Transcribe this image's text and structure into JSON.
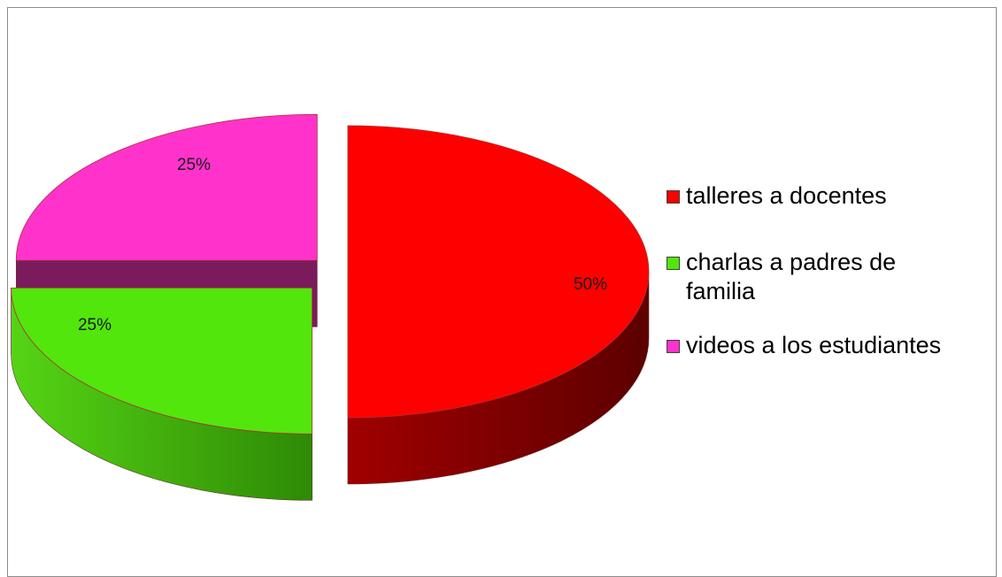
{
  "chart_data": {
    "type": "pie",
    "style": "3d-exploded",
    "slices": [
      {
        "label": "talleres a docentes",
        "value": 50,
        "value_label": "50%",
        "color": "#ff0000",
        "side_color": "#8b0000"
      },
      {
        "label": "charlas a padres de familia",
        "value": 25,
        "value_label": "25%",
        "color": "#52e60c",
        "side_color": "#3f9e0a"
      },
      {
        "label": "videos a los estudiantes",
        "value": 25,
        "value_label": "25%",
        "color": "#ff33cc",
        "side_color": "#7a1c5c"
      }
    ],
    "legend_position": "right"
  }
}
